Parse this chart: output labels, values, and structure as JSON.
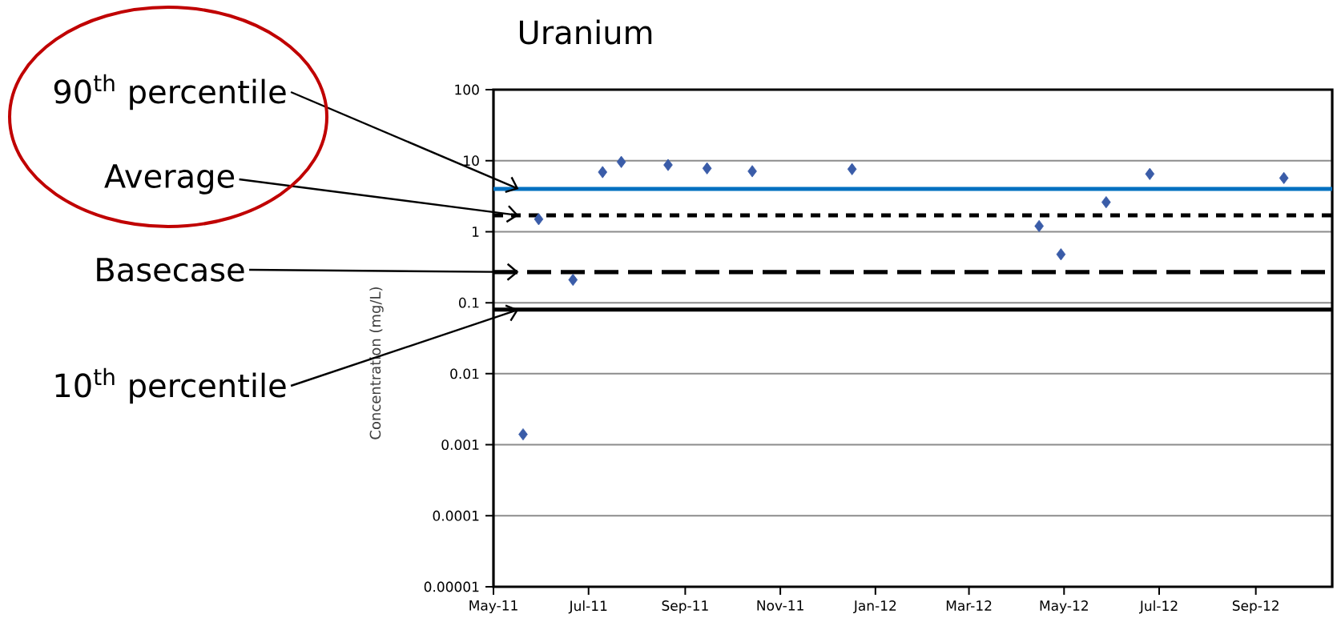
{
  "chart_data": {
    "type": "scatter",
    "title": "Uranium",
    "ylabel": "Concentration (mg/L)",
    "x": [
      "2011-05-20",
      "2011-05-30",
      "2011-06-21",
      "2011-07-10",
      "2011-07-22",
      "2011-08-21",
      "2011-09-15",
      "2011-10-14",
      "2011-12-17",
      "2012-04-15",
      "2012-04-29",
      "2012-05-28",
      "2012-06-25",
      "2012-09-19"
    ],
    "series": [
      {
        "color": "#3a5ca8",
        "values": [
          0.0014,
          1.5,
          0.21,
          6.9,
          9.6,
          8.7,
          7.8,
          7.1,
          7.6,
          1.2,
          0.48,
          2.6,
          6.5,
          5.7
        ]
      }
    ],
    "marker": "diamond",
    "log": "y",
    "grid": "y",
    "xlim": [
      "2011-05-01",
      "2012-10-20"
    ],
    "xticks": [
      {
        "value": "2011-05-01",
        "label": "May-11"
      },
      {
        "value": "2011-07-01",
        "label": "Jul-11"
      },
      {
        "value": "2011-09-01",
        "label": "Sep-11"
      },
      {
        "value": "2011-11-01",
        "label": "Nov-11"
      },
      {
        "value": "2012-01-01",
        "label": "Jan-12"
      },
      {
        "value": "2012-03-01",
        "label": "Mar-12"
      },
      {
        "value": "2012-05-01",
        "label": "May-12"
      },
      {
        "value": "2012-07-01",
        "label": "Jul-12"
      },
      {
        "value": "2012-09-01",
        "label": "Sep-12"
      }
    ],
    "ylim": [
      1e-05,
      100
    ],
    "yticks": [
      {
        "value": 1e-05,
        "label": "0.00001"
      },
      0.0001,
      0.001,
      0.01,
      0.1,
      1,
      10,
      100
    ],
    "ref_lines": [
      {
        "axis": "y",
        "value": 4,
        "label": "90$^{th}$ percentile",
        "color": "#0070c0",
        "line_style": "solid"
      },
      {
        "axis": "y",
        "value": 1.7,
        "label": "Average",
        "color": "#000000",
        "line_style": "dotted"
      },
      {
        "axis": "y",
        "value": 0.27,
        "label": "Basecase",
        "color": "#000000",
        "line_style": "dashed"
      },
      {
        "axis": "y",
        "value": 0.08,
        "label": "10$^{th}$ percentile",
        "color": "#000000",
        "line_style": "solid"
      }
    ]
  }
}
